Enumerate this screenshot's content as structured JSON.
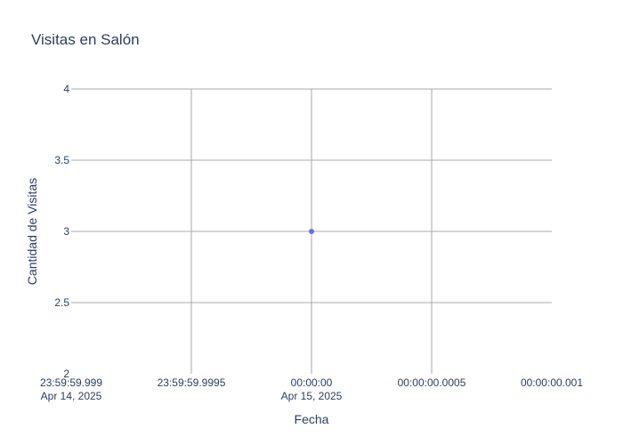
{
  "chart_data": {
    "type": "scatter",
    "title": "Visitas en Salón",
    "xlabel": "Fecha",
    "ylabel": "Cantidad de Visitas",
    "x_ticks": [
      {
        "line1": "23:59:59.999",
        "line2": "Apr 14, 2025",
        "value_ms": -1
      },
      {
        "line1": "23:59:59.9995",
        "line2": "",
        "value_ms": -0.5
      },
      {
        "line1": "00:00:00",
        "line2": "Apr 15, 2025",
        "value_ms": 0
      },
      {
        "line1": "00:00:00.0005",
        "line2": "",
        "value_ms": 0.5
      },
      {
        "line1": "00:00:00.001",
        "line2": "",
        "value_ms": 1
      }
    ],
    "y_ticks": [
      "2",
      "2.5",
      "3",
      "3.5",
      "4"
    ],
    "xlim": [
      "2025-04-14 23:59:59.999",
      "2025-04-15 00:00:00.001"
    ],
    "ylim": [
      2,
      4
    ],
    "grid": true,
    "series": [
      {
        "points": [
          {
            "x": "2025-04-15 00:00:00",
            "y": 3
          }
        ],
        "color": "#636efa"
      }
    ]
  }
}
